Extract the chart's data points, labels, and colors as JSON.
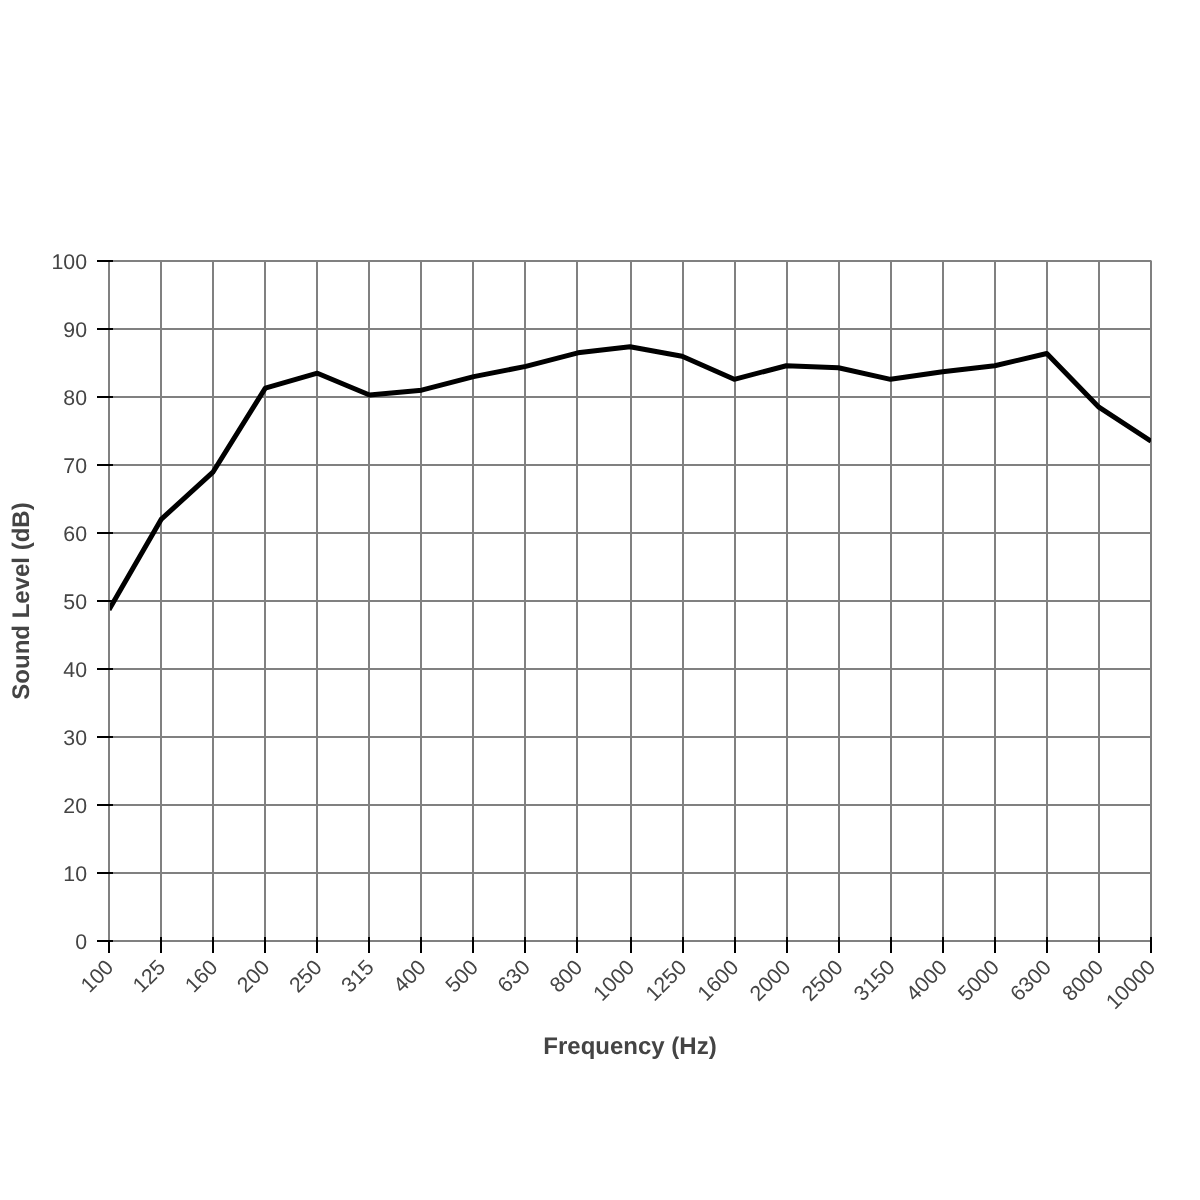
{
  "chart_data": {
    "type": "line",
    "xlabel": "Frequency (Hz)",
    "ylabel": "Sound Level (dB)",
    "categories": [
      "100",
      "125",
      "160",
      "200",
      "250",
      "315",
      "400",
      "500",
      "630",
      "800",
      "1000",
      "1250",
      "1600",
      "2000",
      "2500",
      "3150",
      "4000",
      "5000",
      "6300",
      "8000",
      "10000"
    ],
    "series": [
      {
        "color": "#000000",
        "values": [
          48.7,
          62,
          69,
          81.3,
          83.5,
          80.3,
          81,
          83,
          84.5,
          86.5,
          87.4,
          86,
          82.6,
          84.6,
          84.3,
          82.6,
          83.7,
          84.6,
          86.4,
          78.5,
          73.5
        ]
      }
    ],
    "ylim": [
      0,
      100
    ],
    "yticks": [
      0,
      10,
      20,
      30,
      40,
      50,
      60,
      70,
      80,
      90,
      100
    ],
    "grid": true,
    "marker": "none",
    "line_style": "solid"
  }
}
